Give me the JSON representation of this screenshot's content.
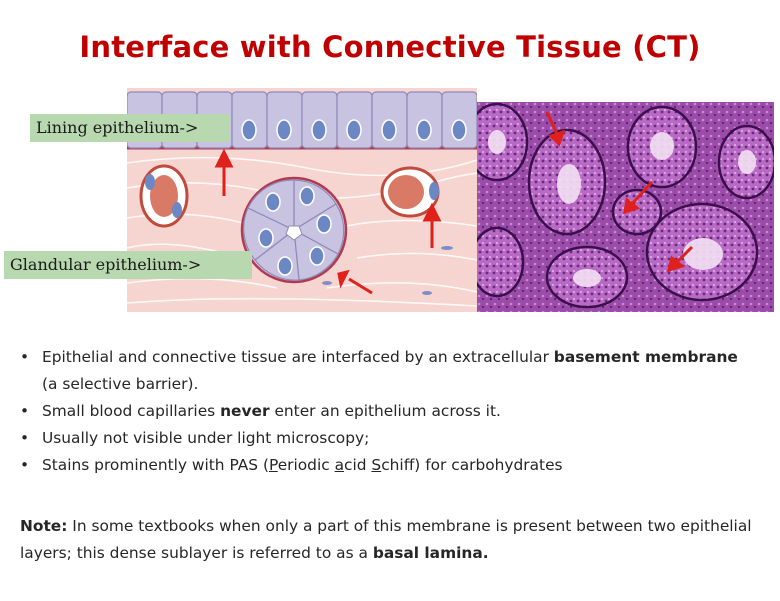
{
  "slide": {
    "title": "Interface with Connective Tissue (CT)",
    "labels": {
      "lining": "Lining epithelium->",
      "glandular": "Glandular epithelium->"
    },
    "bullets": [
      {
        "text_1": "Epithelial and  connective tissue are interfaced by an extracellular ",
        "bold_1": "basement membrane",
        "text_2": " (a selective barrier)."
      },
      {
        "text_1": "Small blood capillaries ",
        "bold_1": "never",
        "text_2": " enter an epithelium across it."
      },
      {
        "text_1": "Usually not visible under light microscopy;"
      },
      {
        "text_1": "Stains prominently with  PAS (",
        "u1": "P",
        "t2": "eriodic ",
        "u2": "a",
        "t3": "cid ",
        "u3": "S",
        "t4": "chiff)  for carbohydrates"
      }
    ],
    "bullet_symbol": "•",
    "note": {
      "label": "Note:",
      "text": " In some textbooks when only a part of this membrane is present between two epithelial layers; this dense sublayer is referred to as a ",
      "bold_end": "basal lamina."
    },
    "colors": {
      "title": "#c00000",
      "label_bg": "#b8d8b0",
      "arrow": "#e0201a",
      "ct_bg": "#f6d4cf",
      "cell": "#c9c3e2",
      "nucleus": "#6c88c4",
      "histology_bg": "#8b3a96"
    }
  }
}
